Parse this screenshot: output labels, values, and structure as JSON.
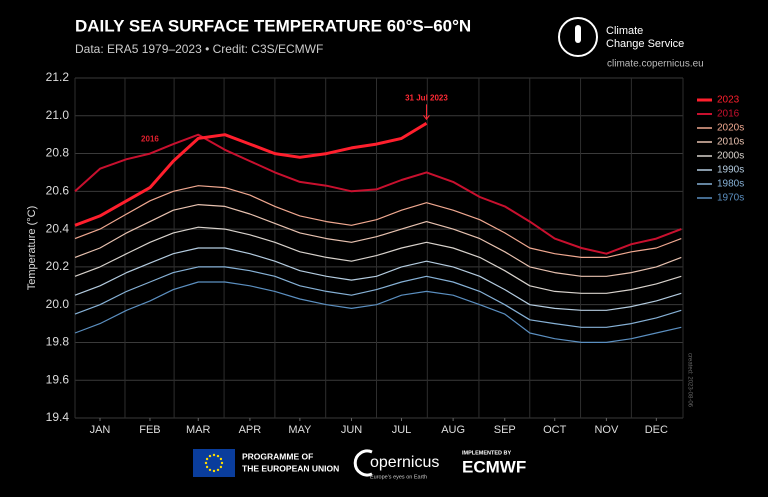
{
  "chart_data": {
    "type": "line",
    "title": "DAILY SEA SURFACE TEMPERATURE 60°S–60°N",
    "subtitle": "Data: ERA5 1979–2023 • Credit: C3S/ECMWF",
    "y_label": "Temperature (°C)",
    "annotation_2023": "31 Jul 2023",
    "annotation_2016": "2016",
    "created_note": "created: 2023-08-06",
    "x": [
      1,
      16,
      32,
      46,
      60,
      75,
      91,
      106,
      121,
      136,
      152,
      167,
      182,
      197,
      212,
      228,
      244,
      259,
      274,
      289,
      305,
      320,
      335,
      350,
      365
    ],
    "xlim": [
      1,
      366
    ],
    "xticks": [
      {
        "value": 16,
        "label": "JAN"
      },
      {
        "value": 46,
        "label": "FEB"
      },
      {
        "value": 75,
        "label": "MAR"
      },
      {
        "value": 106,
        "label": "APR"
      },
      {
        "value": 136,
        "label": "MAY"
      },
      {
        "value": 167,
        "label": "JUN"
      },
      {
        "value": 197,
        "label": "JUL"
      },
      {
        "value": 228,
        "label": "AUG"
      },
      {
        "value": 259,
        "label": "SEP"
      },
      {
        "value": 289,
        "label": "OCT"
      },
      {
        "value": 320,
        "label": "NOV"
      },
      {
        "value": 350,
        "label": "DEC"
      }
    ],
    "ylim": [
      19.4,
      21.2
    ],
    "yticks": [
      19.4,
      19.6,
      19.8,
      {
        "value": 20,
        "label": "20.0"
      },
      20.2,
      20.4,
      20.6,
      20.8,
      {
        "value": 21,
        "label": "21.0"
      },
      21.2
    ],
    "grid": true,
    "legend": "right",
    "series": [
      {
        "name": "1970s",
        "color": "#5b8fc0",
        "values": [
          19.85,
          19.9,
          19.97,
          20.02,
          20.08,
          20.12,
          20.12,
          20.1,
          20.07,
          20.03,
          20.0,
          19.98,
          20.0,
          20.05,
          20.07,
          20.05,
          20.0,
          19.95,
          19.85,
          19.82,
          19.8,
          19.8,
          19.82,
          19.85,
          19.88
        ]
      },
      {
        "name": "1980s",
        "color": "#86b1d6",
        "values": [
          19.95,
          20.0,
          20.07,
          20.12,
          20.17,
          20.2,
          20.2,
          20.18,
          20.15,
          20.1,
          20.07,
          20.05,
          20.08,
          20.12,
          20.15,
          20.12,
          20.07,
          20.0,
          19.92,
          19.9,
          19.88,
          19.88,
          19.9,
          19.93,
          19.97
        ]
      },
      {
        "name": "1990s",
        "color": "#b4cce0",
        "values": [
          20.05,
          20.1,
          20.17,
          20.22,
          20.27,
          20.3,
          20.3,
          20.27,
          20.23,
          20.18,
          20.15,
          20.13,
          20.15,
          20.2,
          20.23,
          20.2,
          20.15,
          20.08,
          20.0,
          19.98,
          19.97,
          19.97,
          19.99,
          20.02,
          20.06
        ]
      },
      {
        "name": "2000s",
        "color": "#d8d2cc",
        "values": [
          20.15,
          20.2,
          20.27,
          20.33,
          20.38,
          20.41,
          20.4,
          20.37,
          20.33,
          20.28,
          20.25,
          20.23,
          20.26,
          20.3,
          20.33,
          20.3,
          20.25,
          20.18,
          20.1,
          20.07,
          20.06,
          20.06,
          20.08,
          20.11,
          20.15
        ]
      },
      {
        "name": "2010s",
        "color": "#e8c2b0",
        "values": [
          20.25,
          20.3,
          20.38,
          20.44,
          20.5,
          20.53,
          20.52,
          20.48,
          20.43,
          20.38,
          20.35,
          20.33,
          20.36,
          20.4,
          20.44,
          20.4,
          20.35,
          20.28,
          20.2,
          20.17,
          20.15,
          20.15,
          20.17,
          20.2,
          20.25
        ]
      },
      {
        "name": "2020s",
        "color": "#f0a890",
        "values": [
          20.35,
          20.4,
          20.48,
          20.55,
          20.6,
          20.63,
          20.62,
          20.58,
          20.52,
          20.47,
          20.44,
          20.42,
          20.45,
          20.5,
          20.54,
          20.5,
          20.45,
          20.38,
          20.3,
          20.27,
          20.25,
          20.25,
          20.28,
          20.3,
          20.35
        ]
      },
      {
        "name": "2016",
        "color": "#c8102e",
        "width": 2,
        "values": [
          20.6,
          20.72,
          20.77,
          20.8,
          20.85,
          20.9,
          20.82,
          20.76,
          20.7,
          20.65,
          20.63,
          20.6,
          20.61,
          20.66,
          20.7,
          20.65,
          20.57,
          20.52,
          20.44,
          20.35,
          20.3,
          20.27,
          20.32,
          20.35,
          20.4
        ]
      },
      {
        "name": "2023",
        "color": "#ff1f2d",
        "width": 3,
        "values": [
          20.42,
          20.47,
          20.55,
          20.62,
          20.76,
          20.88,
          20.9,
          20.85,
          20.8,
          20.78,
          20.8,
          20.83,
          20.85,
          20.88,
          20.96,
          null,
          null,
          null,
          null,
          null,
          null,
          null,
          null,
          null,
          null
        ]
      }
    ]
  },
  "branding": {
    "service_line1": "Climate",
    "service_line2": "Change Service",
    "url": "climate.copernicus.eu",
    "eu_line1": "PROGRAMME OF",
    "eu_line2": "THE EUROPEAN UNION",
    "copernicus": "opernicus",
    "copernicus_tagline": "Europe's eyes on Earth",
    "implemented_by": "IMPLEMENTED BY",
    "ecmwf": "ECMWF"
  }
}
